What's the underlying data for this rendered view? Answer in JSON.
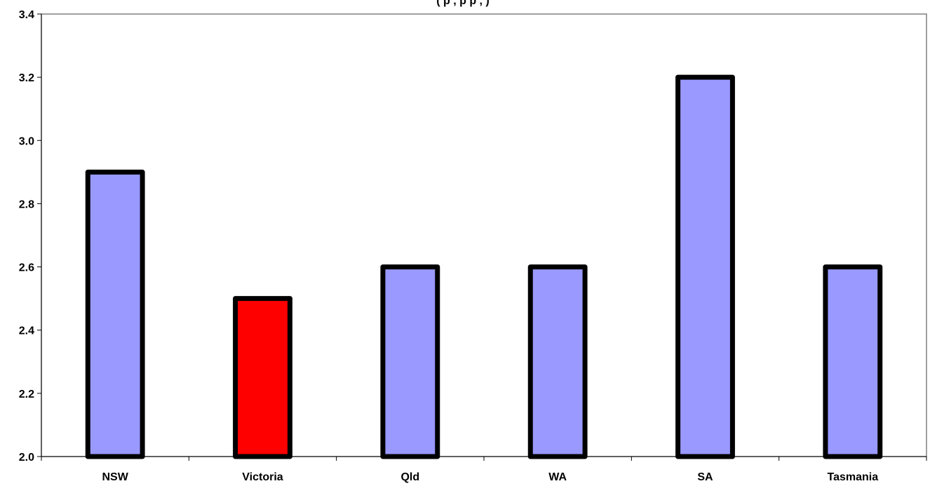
{
  "chart_data": {
    "type": "bar",
    "title": "",
    "xlabel": "",
    "ylabel": "",
    "ylim": [
      2.0,
      3.4
    ],
    "yticks": [
      "2.0",
      "2.2",
      "2.4",
      "2.6",
      "2.8",
      "3.0",
      "3.2",
      "3.4"
    ],
    "categories": [
      "NSW",
      "Victoria",
      "Qld",
      "WA",
      "SA",
      "Tasmania"
    ],
    "values": [
      2.9,
      2.5,
      2.6,
      2.6,
      3.2,
      2.6
    ],
    "bar_colors": [
      "#9999ff",
      "#ff0000",
      "#9999ff",
      "#9999ff",
      "#9999ff",
      "#9999ff"
    ],
    "bar_outline_color": "#000000",
    "grid": false,
    "legend": "none"
  },
  "header_fragment": "(                                   p    ,           p  p              ,                  )"
}
